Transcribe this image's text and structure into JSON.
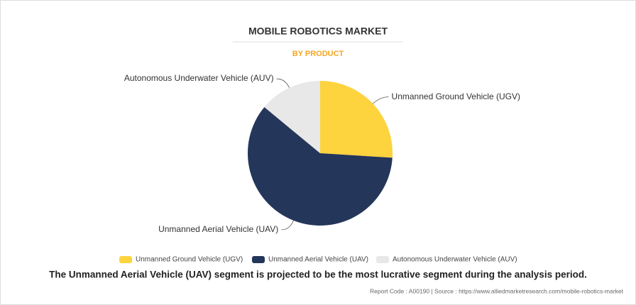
{
  "chart_data": {
    "type": "pie",
    "title": "MOBILE ROBOTICS MARKET",
    "subtitle": "BY PRODUCT",
    "categories": [
      "Unmanned Ground Vehicle (UGV)",
      "Unmanned Aerial Vehicle (UAV)",
      "Autonomous Underwater Vehicle (AUV)"
    ],
    "values": [
      26,
      60,
      14
    ],
    "colors": [
      "#fdd33e",
      "#24365a",
      "#e8e8e8"
    ],
    "legend": "bottom"
  },
  "note": "The Unmanned Aerial Vehicle (UAV) segment is projected to be the most lucrative segment during the analysis period.",
  "source": "Report Code : A00190  |  Source : https://www.alliedmarketresearch.com/mobile-robotics-market"
}
